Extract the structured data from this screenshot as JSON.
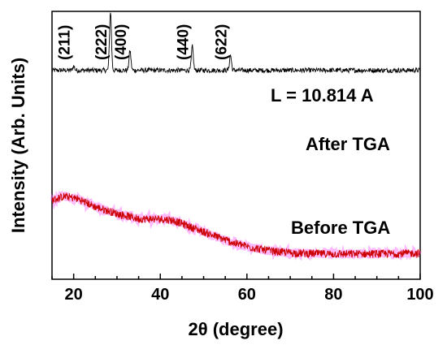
{
  "chart_data": {
    "type": "line",
    "xlabel_prefix": "2",
    "xlabel_theta": "θ",
    "xlabel_suffix": " (degree)",
    "ylabel": "Intensity (Arb. Units)",
    "xlim": [
      15,
      100
    ],
    "x_ticks": [
      20,
      40,
      60,
      80,
      100
    ],
    "y_ticks_shown": false,
    "annotation": "L = 10.814 A",
    "series": [
      {
        "name": "After TGA",
        "color": "#000000",
        "baseline_level": 0.78,
        "peaks": [
          {
            "label": "(211)",
            "x": 20.0,
            "height": 0.07
          },
          {
            "label": "(222)",
            "x": 28.5,
            "height": 1.0
          },
          {
            "label": "(400)",
            "x": 33.0,
            "height": 0.33
          },
          {
            "label": "(440)",
            "x": 47.4,
            "height": 0.4
          },
          {
            "label": "(622)",
            "x": 56.2,
            "height": 0.26
          }
        ]
      },
      {
        "name": "Before TGA",
        "color": "#cc0000",
        "shadow_color": "#ff66ff",
        "profile": [
          [
            15,
            0.295
          ],
          [
            18,
            0.31
          ],
          [
            21,
            0.3
          ],
          [
            25,
            0.27
          ],
          [
            30,
            0.245
          ],
          [
            35,
            0.225
          ],
          [
            40,
            0.225
          ],
          [
            43,
            0.22
          ],
          [
            47,
            0.195
          ],
          [
            52,
            0.165
          ],
          [
            57,
            0.135
          ],
          [
            62,
            0.115
          ],
          [
            67,
            0.102
          ],
          [
            72,
            0.097
          ],
          [
            80,
            0.094
          ],
          [
            90,
            0.095
          ],
          [
            100,
            0.097
          ]
        ]
      }
    ]
  }
}
